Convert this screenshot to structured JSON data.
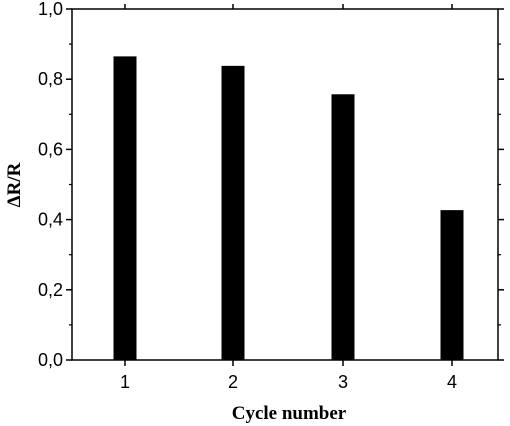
{
  "chart_data": {
    "type": "bar",
    "title": "",
    "xlabel": "Cycle number",
    "ylabel": "ΔR/R",
    "categories": [
      "1",
      "2",
      "3",
      "4"
    ],
    "values": [
      0.865,
      0.838,
      0.757,
      0.427
    ],
    "ylim": [
      0,
      1.0
    ],
    "yticks": [
      0.0,
      0.2,
      0.4,
      0.6,
      0.8,
      1.0
    ],
    "ytick_labels": [
      "0,0",
      "0,2",
      "0,4",
      "0,6",
      "0,8",
      "1,0"
    ],
    "grid": false,
    "legend": "none",
    "bar_color": "#000000"
  }
}
